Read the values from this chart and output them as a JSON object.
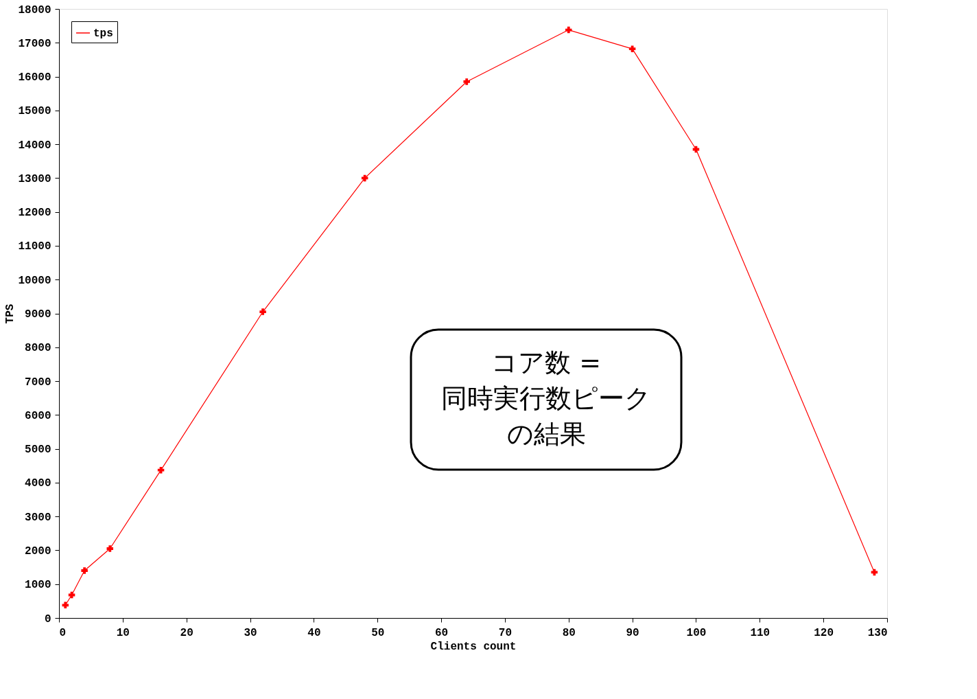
{
  "chart_data": {
    "type": "line",
    "xlabel": "Clients count",
    "ylabel": "TPS",
    "x": [
      1,
      2,
      4,
      8,
      16,
      32,
      48,
      64,
      80,
      90,
      100,
      128
    ],
    "series": [
      {
        "name": "tps",
        "color": "#ff0000",
        "values": [
          380,
          680,
          1400,
          2050,
          4370,
          9050,
          13000,
          15850,
          17380,
          16820,
          13850,
          1350
        ]
      }
    ],
    "xlim": [
      0,
      130
    ],
    "xticks": [
      0,
      10,
      20,
      30,
      40,
      50,
      60,
      70,
      80,
      90,
      100,
      110,
      120,
      130
    ],
    "ylim": [
      0,
      18000
    ],
    "yticks": [
      0,
      1000,
      2000,
      3000,
      4000,
      5000,
      6000,
      7000,
      8000,
      9000,
      10000,
      11000,
      12000,
      13000,
      14000,
      15000,
      16000,
      17000,
      18000
    ],
    "marker": "cross",
    "legend": "top left",
    "grid": false,
    "annotations": [
      "コア数 =",
      "同時実行数ピーク",
      "の結果"
    ]
  }
}
